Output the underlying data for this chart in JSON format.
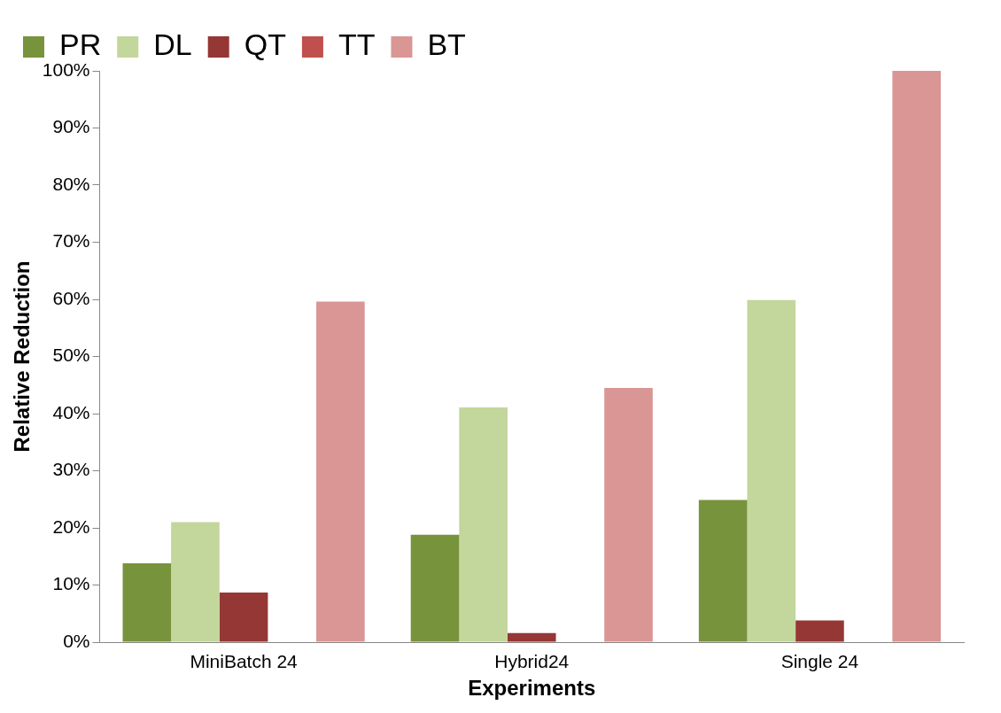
{
  "chart_data": {
    "type": "bar",
    "xlabel": "Experiments",
    "ylabel": "Relative Reduction",
    "categories": [
      "MiniBatch 24",
      "Hybrid24",
      "Single 24"
    ],
    "series": [
      {
        "name": "PR",
        "color": "#77933c",
        "values": [
          13.8,
          18.8,
          24.9
        ]
      },
      {
        "name": "DL",
        "color": "#c3d69b",
        "values": [
          21.0,
          41.1,
          59.9
        ]
      },
      {
        "name": "QT",
        "color": "#953735",
        "values": [
          8.7,
          1.6,
          3.8
        ]
      },
      {
        "name": "TT",
        "color": "#c0504d",
        "values": [
          0,
          0,
          0
        ]
      },
      {
        "name": "BT",
        "color": "#d99694",
        "values": [
          59.6,
          44.5,
          100
        ]
      }
    ],
    "ylim": [
      0,
      100
    ],
    "yticks": [
      {
        "value": 0,
        "label": "0%"
      },
      {
        "value": 10,
        "label": "10%"
      },
      {
        "value": 20,
        "label": "20%"
      },
      {
        "value": 30,
        "label": "30%"
      },
      {
        "value": 40,
        "label": "40%"
      },
      {
        "value": 50,
        "label": "50%"
      },
      {
        "value": 60,
        "label": "60%"
      },
      {
        "value": 70,
        "label": "70%"
      },
      {
        "value": 80,
        "label": "80%"
      },
      {
        "value": 90,
        "label": "90%"
      },
      {
        "value": 100,
        "label": "100%"
      }
    ],
    "grid": false,
    "legend": "top left"
  }
}
